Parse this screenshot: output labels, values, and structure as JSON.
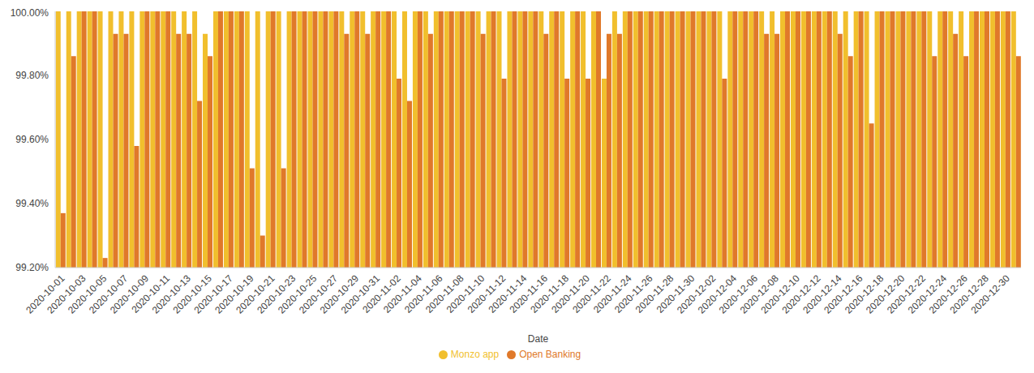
{
  "chart_data": {
    "type": "bar",
    "x_label": "Date",
    "legend": "bottom",
    "grid": false,
    "categories": [
      "2020-10-01",
      null,
      "2020-10-03",
      null,
      "2020-10-05",
      null,
      "2020-10-07",
      null,
      "2020-10-09",
      null,
      "2020-10-11",
      null,
      "2020-10-13",
      null,
      "2020-10-15",
      null,
      "2020-10-17",
      null,
      "2020-10-19",
      null,
      "2020-10-21",
      null,
      "2020-10-23",
      null,
      "2020-10-25",
      null,
      "2020-10-27",
      null,
      "2020-10-29",
      null,
      "2020-10-31",
      null,
      "2020-11-02",
      null,
      "2020-11-04",
      null,
      "2020-11-06",
      null,
      "2020-11-08",
      null,
      "2020-11-10",
      null,
      "2020-11-12",
      null,
      "2020-11-14",
      null,
      "2020-11-16",
      null,
      "2020-11-18",
      null,
      "2020-11-20",
      null,
      "2020-11-22",
      null,
      "2020-11-24",
      null,
      "2020-11-26",
      null,
      "2020-11-28",
      null,
      "2020-11-30",
      null,
      "2020-12-02",
      null,
      "2020-12-04",
      null,
      "2020-12-06",
      null,
      "2020-12-08",
      null,
      "2020-12-10",
      null,
      "2020-12-12",
      null,
      "2020-12-14",
      null,
      "2020-12-16",
      null,
      "2020-12-18",
      null,
      "2020-12-20",
      null,
      "2020-12-22",
      null,
      "2020-12-24",
      null,
      "2020-12-26",
      null,
      "2020-12-28",
      null,
      "2020-12-30",
      null
    ],
    "series": [
      {
        "name": "Monzo app",
        "color": "#F1BF2D",
        "values": [
          100,
          100,
          100,
          100,
          100,
          100,
          100,
          100,
          100,
          100,
          100,
          100,
          100,
          100,
          99.93,
          100,
          100,
          100,
          100,
          100,
          100,
          100,
          100,
          100,
          100,
          100,
          100,
          100,
          100,
          100,
          100,
          100,
          100,
          100,
          100,
          100,
          100,
          100,
          100,
          100,
          100,
          100,
          100,
          100,
          100,
          100,
          100,
          100,
          100,
          100,
          100,
          100,
          99.79,
          100,
          100,
          100,
          100,
          100,
          100,
          100,
          100,
          100,
          100,
          100,
          100,
          100,
          100,
          100,
          100,
          100,
          100,
          100,
          100,
          100,
          100,
          100,
          100,
          100,
          100,
          100,
          100,
          100,
          100,
          100,
          100,
          100,
          100,
          100,
          100,
          100,
          100,
          100
        ]
      },
      {
        "name": "Open Banking",
        "color": "#E0792A",
        "values": [
          99.37,
          99.86,
          100,
          100,
          99.23,
          99.93,
          99.93,
          99.58,
          100,
          100,
          100,
          99.93,
          99.93,
          99.72,
          99.86,
          100,
          100,
          100,
          99.51,
          99.3,
          100,
          99.51,
          100,
          100,
          100,
          100,
          100,
          99.93,
          100,
          99.93,
          100,
          100,
          99.79,
          99.72,
          100,
          99.93,
          100,
          100,
          100,
          100,
          99.93,
          100,
          99.79,
          100,
          100,
          100,
          99.93,
          100,
          99.79,
          100,
          99.79,
          100,
          99.93,
          99.93,
          100,
          100,
          100,
          100,
          100,
          100,
          100,
          100,
          100,
          99.79,
          100,
          100,
          100,
          99.93,
          99.93,
          100,
          100,
          100,
          100,
          100,
          99.93,
          99.86,
          100,
          99.65,
          100,
          100,
          100,
          100,
          100,
          99.86,
          100,
          99.93,
          99.86,
          100,
          100,
          100,
          100,
          99.86
        ]
      }
    ],
    "ylim": [
      99.2,
      100
    ],
    "yticks": [
      {
        "value": 99.2,
        "label": "99.20%"
      },
      {
        "value": 99.4,
        "label": "99.40%"
      },
      {
        "value": 99.6,
        "label": "99.60%"
      },
      {
        "value": 99.8,
        "label": "99.80%"
      },
      {
        "value": 100,
        "label": "100.00%"
      }
    ]
  }
}
